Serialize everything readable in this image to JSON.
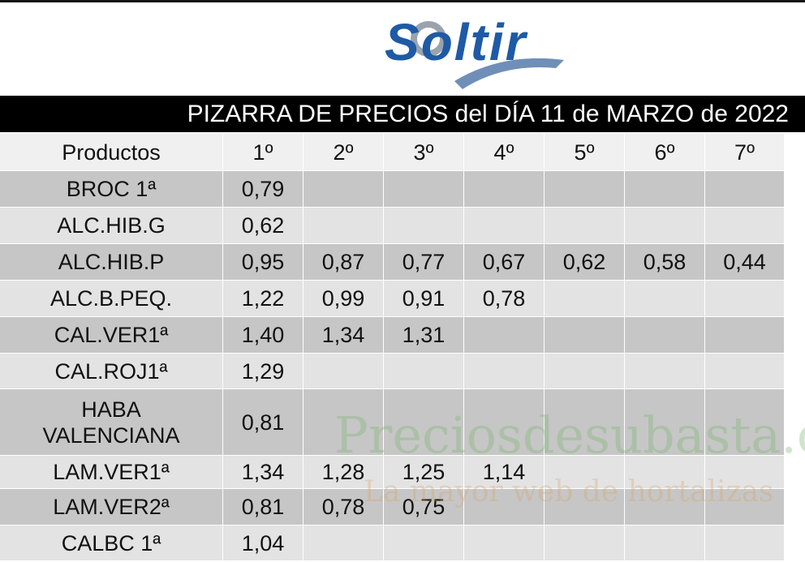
{
  "header": {
    "logo": "Soltir",
    "title": "PIZARRA DE PRECIOS del DÍA 11 de MARZO de 2022"
  },
  "table": {
    "columns": [
      "Productos",
      "1º",
      "2º",
      "3º",
      "4º",
      "5º",
      "6º",
      "7º"
    ],
    "rows": [
      [
        "BROC 1ª",
        "0,79",
        null,
        null,
        null,
        null,
        null,
        null
      ],
      [
        "ALC.HIB.G",
        "0,62",
        null,
        null,
        null,
        null,
        null,
        null
      ],
      [
        "ALC.HIB.P",
        "0,95",
        "0,87",
        "0,77",
        "0,67",
        "0,62",
        "0,58",
        "0,44"
      ],
      [
        "ALC.B.PEQ.",
        "1,22",
        "0,99",
        "0,91",
        "0,78",
        null,
        null,
        null
      ],
      [
        "CAL.VER1ª",
        "1,40",
        "1,34",
        "1,31",
        null,
        null,
        null,
        null
      ],
      [
        "CAL.ROJ1ª",
        "1,29",
        null,
        null,
        null,
        null,
        null,
        null
      ],
      [
        "HABA\nVALENCIANA",
        "0,81",
        null,
        null,
        null,
        null,
        null,
        null
      ],
      [
        "LAM.VER1ª",
        "1,34",
        "1,28",
        "1,25",
        "1,14",
        null,
        null,
        null
      ],
      [
        "LAM.VER2ª",
        "0,81",
        "0,78",
        "0,75",
        null,
        null,
        null,
        null
      ],
      [
        "CALBC 1ª",
        "1,04",
        null,
        null,
        null,
        null,
        null,
        null
      ]
    ]
  },
  "watermark": {
    "site": "Preciosdesubasta.com",
    "tagline": "La mayor web de hortalizas"
  }
}
